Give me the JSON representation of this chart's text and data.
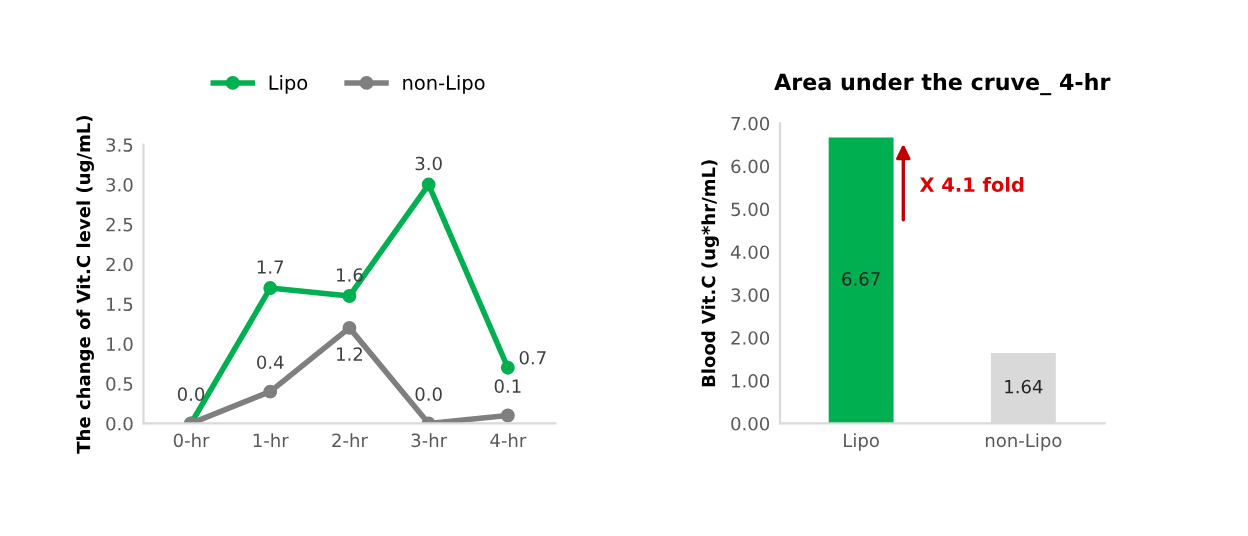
{
  "chart_data": [
    {
      "type": "line",
      "ylabel": "The change of Vit.C level (ug/mL)",
      "categories": [
        "0-hr",
        "1-hr",
        "2-hr",
        "3-hr",
        "4-hr"
      ],
      "series": [
        {
          "name": "Lipo",
          "color": "#00b050",
          "values": [
            0.0,
            1.7,
            1.6,
            3.0,
            0.7
          ],
          "value_labels": [
            null,
            "1.7",
            "1.6",
            "3.0",
            "0.7"
          ]
        },
        {
          "name": "non-Lipo",
          "color": "#7f7f7f",
          "values": [
            0.0,
            0.4,
            1.2,
            0.0,
            0.1
          ],
          "value_labels": [
            "0.0",
            "0.4",
            "1.2",
            "0.0",
            "0.1"
          ]
        }
      ],
      "ylim": [
        0,
        3.5
      ],
      "yticks": [
        {
          "value": 0,
          "label": "0.0"
        },
        {
          "value": 0.5,
          "label": "0.5"
        },
        {
          "value": 1,
          "label": "1.0"
        },
        {
          "value": 1.5,
          "label": "1.5"
        },
        {
          "value": 2,
          "label": "2.0"
        },
        {
          "value": 2.5,
          "label": "2.5"
        },
        {
          "value": 3,
          "label": "3.0"
        },
        {
          "value": 3.5,
          "label": "3.5"
        }
      ],
      "marker": "circle",
      "line_style": "solid",
      "legend": "top",
      "grid": false
    },
    {
      "type": "bar",
      "title": "Area under the cruve_ 4-hr",
      "ylabel": "Blood Vit.C (ug*hr/mL)",
      "categories": [
        "Lipo",
        "non-Lipo"
      ],
      "values": [
        6.67,
        1.64
      ],
      "colors": [
        "#00b050",
        "#d9d9d9"
      ],
      "data_labels": true,
      "ylim": [
        0,
        7
      ],
      "yticks": [
        {
          "value": 0,
          "label": "0.00"
        },
        {
          "value": 1,
          "label": "1.00"
        },
        {
          "value": 2,
          "label": "2.00"
        },
        {
          "value": 3,
          "label": "3.00"
        },
        {
          "value": 4,
          "label": "4.00"
        },
        {
          "value": 5,
          "label": "5.00"
        },
        {
          "value": 6,
          "label": "6.00"
        },
        {
          "value": 7,
          "label": "7.00"
        }
      ],
      "annotations": [
        "X 4.1 fold"
      ],
      "grid": false
    }
  ]
}
